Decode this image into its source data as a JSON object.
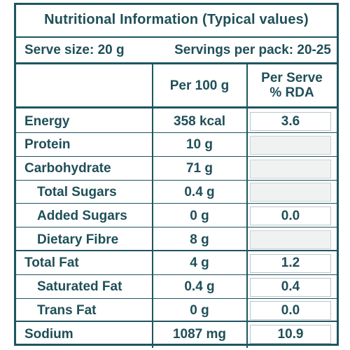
{
  "title": "Nutritional Information (Typical values)",
  "serve_size": "Serve size: 20 g",
  "servings_per_pack": "Servings per pack: 20-25",
  "headers": {
    "per100": "Per 100 g",
    "rda_line1": "Per Serve",
    "rda_line2": "% RDA"
  },
  "rows": [
    {
      "name": "Energy",
      "per100": "358 kcal",
      "rda": "3.6",
      "sub": false
    },
    {
      "name": "Protein",
      "per100": "10 g",
      "rda": "",
      "sub": false
    },
    {
      "name": "Carbohydrate",
      "per100": "71 g",
      "rda": "",
      "sub": false
    },
    {
      "name": "Total Sugars",
      "per100": "0.4 g",
      "rda": "",
      "sub": true
    },
    {
      "name": "Added Sugars",
      "per100": "0 g",
      "rda": "0.0",
      "sub": true
    },
    {
      "name": "Dietary Fibre",
      "per100": "8 g",
      "rda": "",
      "sub": true
    },
    {
      "name": "Total Fat",
      "per100": "4 g",
      "rda": "1.2",
      "sub": false
    },
    {
      "name": "Saturated Fat",
      "per100": "0.4 g",
      "rda": "0.4",
      "sub": true
    },
    {
      "name": "Trans Fat",
      "per100": "0 g",
      "rda": "0.0",
      "sub": true
    },
    {
      "name": "Sodium",
      "per100": "1087 mg",
      "rda": "10.9",
      "sub": false
    }
  ]
}
